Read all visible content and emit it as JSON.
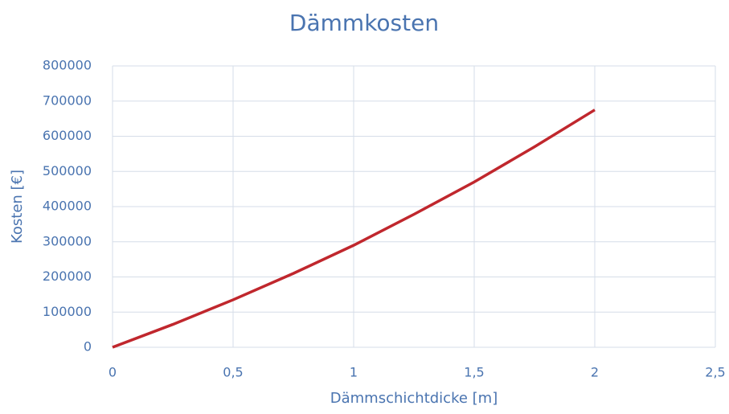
{
  "chart_data": {
    "type": "line",
    "title": "Dämmkosten",
    "x_label": "Dämmschichtdicke [m]",
    "y_label": "Kosten [€]",
    "x": [
      0,
      0.25,
      0.5,
      0.75,
      1,
      1.25,
      1.5,
      1.75,
      2
    ],
    "values": [
      0,
      65000,
      135000,
      210000,
      290000,
      378000,
      470000,
      570000,
      675000
    ],
    "color": "#c0272d",
    "xlim": [
      0,
      2.5
    ],
    "xticks": [
      0,
      {
        "value": 0.5,
        "label": "0,5"
      },
      1,
      {
        "value": 1.5,
        "label": "1,5"
      },
      2,
      {
        "value": 2.5,
        "label": "2,5"
      }
    ],
    "ylim": [
      0,
      800000
    ],
    "yticks": [
      0,
      100000,
      200000,
      300000,
      400000,
      500000,
      600000,
      700000,
      800000
    ],
    "grid": true
  }
}
